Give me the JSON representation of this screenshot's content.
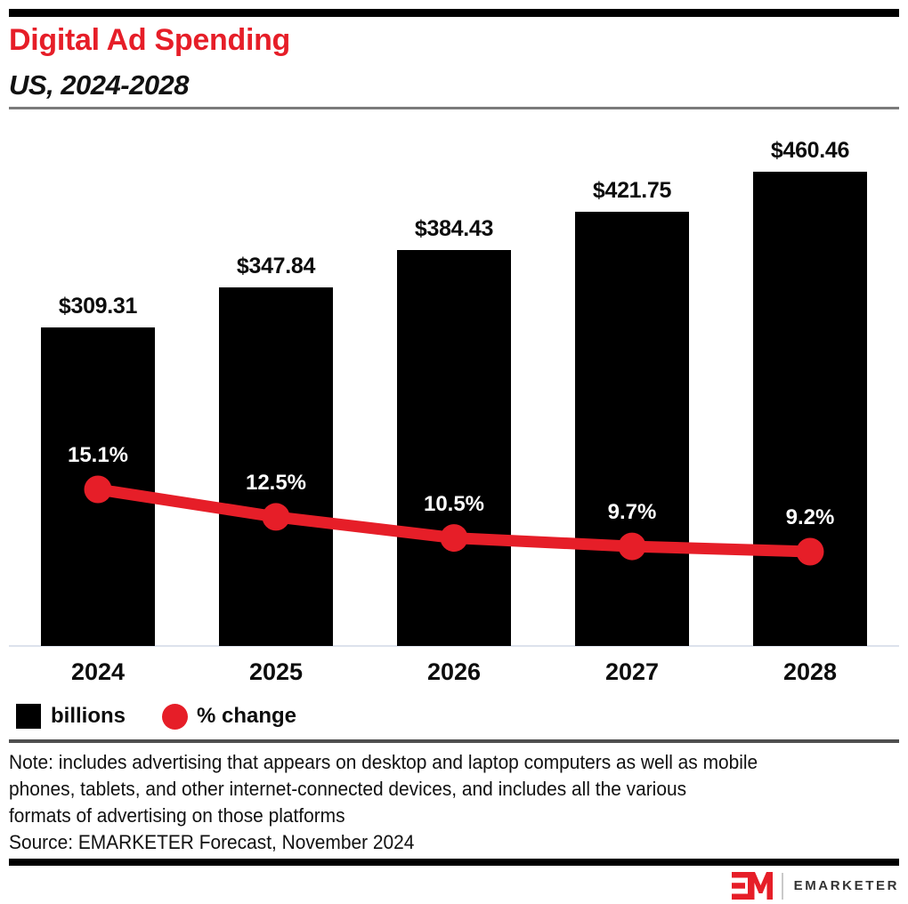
{
  "chart_data": {
    "type": "bar",
    "title": "Digital Ad Spending",
    "subtitle": "US, 2024-2028",
    "categories": [
      "2024",
      "2025",
      "2026",
      "2027",
      "2028"
    ],
    "series": [
      {
        "name": "billions",
        "type": "bar",
        "values": [
          309.31,
          347.84,
          384.43,
          421.75,
          460.46
        ],
        "labels": [
          "$309.31",
          "$347.84",
          "$384.43",
          "$421.75",
          "$460.46"
        ],
        "color": "#000000"
      },
      {
        "name": "% change",
        "type": "line",
        "values": [
          15.1,
          12.5,
          10.5,
          9.7,
          9.2
        ],
        "labels": [
          "15.1%",
          "12.5%",
          "10.5%",
          "9.7%",
          "9.2%"
        ],
        "color": "#E61E28"
      }
    ],
    "legend": [
      {
        "label": "billions",
        "swatch": "square",
        "color": "#000000"
      },
      {
        "label": "% change",
        "swatch": "circle",
        "color": "#E61E28"
      }
    ],
    "xlabel": "",
    "ylabel": "",
    "grid": false,
    "legend_position": "bottom-left"
  },
  "footer": {
    "note_lines": [
      "Note: includes advertising that appears on desktop and laptop computers as well as mobile",
      "phones, tablets, and other internet-connected devices, and includes all the various",
      "formats of advertising on those platforms"
    ],
    "source": "Source: EMARKETER Forecast, November 2024",
    "logo_text": "EMARKETER"
  },
  "colors": {
    "brand_red": "#E61E28",
    "bar_black": "#000000",
    "baseline_gray": "#dde2ec",
    "rule_gray": "#7b7b7b",
    "note_rule_gray": "#4f4f4f"
  }
}
